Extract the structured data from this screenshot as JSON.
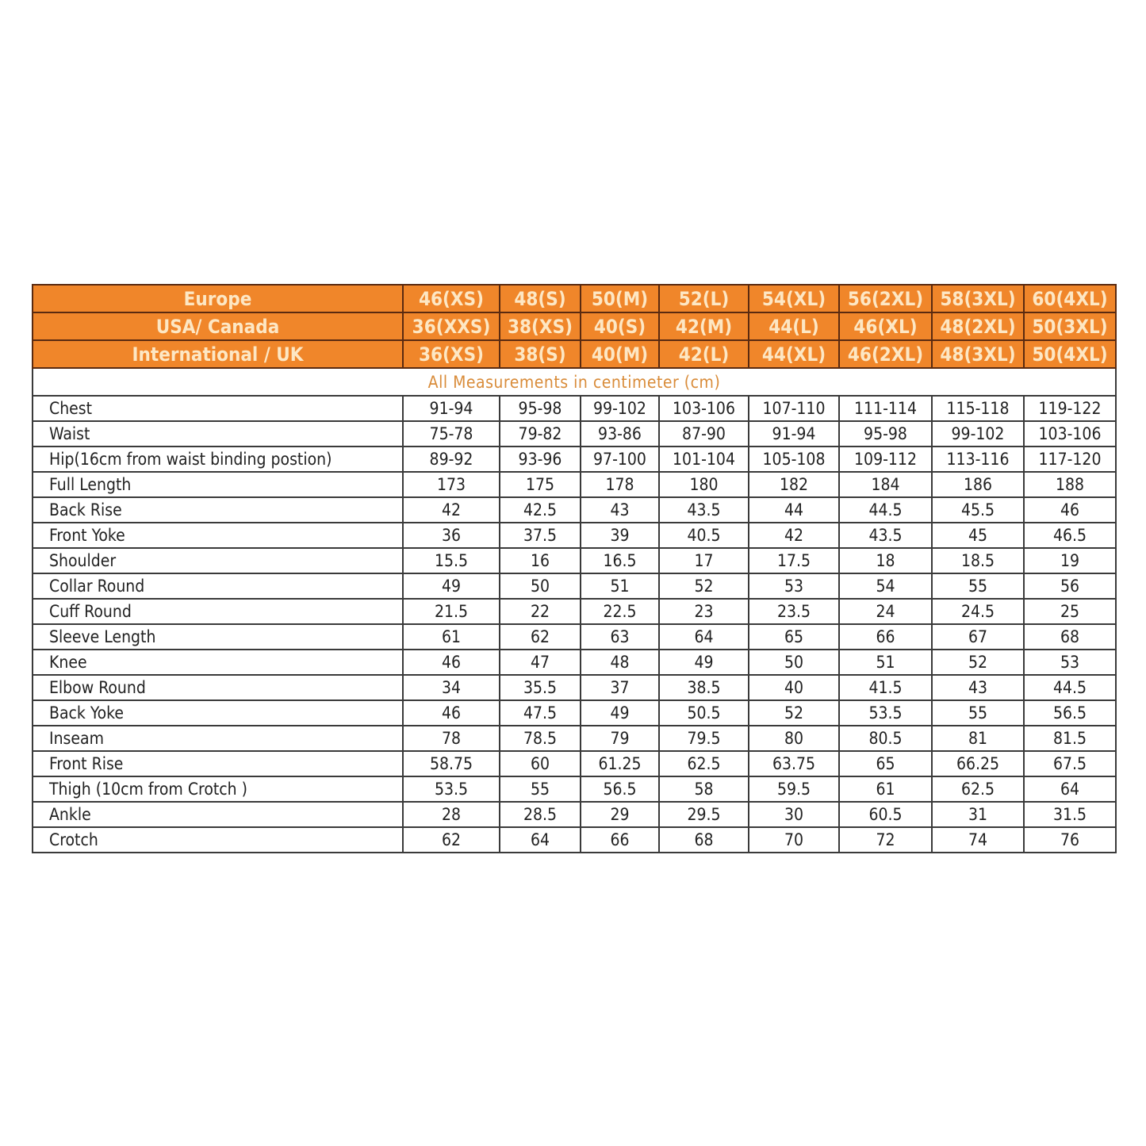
{
  "size_chart": {
    "header_rows": [
      {
        "label": "Europe",
        "sizes": [
          "46(XS)",
          "48(S)",
          "50(M)",
          "52(L)",
          "54(XL)",
          "56(2XL)",
          "58(3XL)",
          "60(4XL)"
        ]
      },
      {
        "label": "USA/ Canada",
        "sizes": [
          "36(XXS)",
          "38(XS)",
          "40(S)",
          "42(M)",
          "44(L)",
          "46(XL)",
          "48(2XL)",
          "50(3XL)"
        ]
      },
      {
        "label": "International / UK",
        "sizes": [
          "36(XS)",
          "38(S)",
          "40(M)",
          "42(L)",
          "44(XL)",
          "46(2XL)",
          "48(3XL)",
          "50(4XL)"
        ]
      }
    ],
    "note": "All Measurements in centimeter (cm)",
    "rows": [
      {
        "label": "Chest",
        "values": [
          "91-94",
          "95-98",
          "99-102",
          "103-106",
          "107-110",
          "111-114",
          "115-118",
          "119-122"
        ]
      },
      {
        "label": "Waist",
        "values": [
          "75-78",
          "79-82",
          "93-86",
          "87-90",
          "91-94",
          "95-98",
          "99-102",
          "103-106"
        ]
      },
      {
        "label": "Hip(16cm from waist binding postion)",
        "values": [
          "89-92",
          "93-96",
          "97-100",
          "101-104",
          "105-108",
          "109-112",
          "113-116",
          "117-120"
        ]
      },
      {
        "label": "Full Length",
        "values": [
          "173",
          "175",
          "178",
          "180",
          "182",
          "184",
          "186",
          "188"
        ]
      },
      {
        "label": "Back Rise",
        "values": [
          "42",
          "42.5",
          "43",
          "43.5",
          "44",
          "44.5",
          "45.5",
          "46"
        ]
      },
      {
        "label": "Front Yoke",
        "values": [
          "36",
          "37.5",
          "39",
          "40.5",
          "42",
          "43.5",
          "45",
          "46.5"
        ]
      },
      {
        "label": "Shoulder",
        "values": [
          "15.5",
          "16",
          "16.5",
          "17",
          "17.5",
          "18",
          "18.5",
          "19"
        ]
      },
      {
        "label": "Collar Round",
        "values": [
          "49",
          "50",
          "51",
          "52",
          "53",
          "54",
          "55",
          "56"
        ]
      },
      {
        "label": "Cuff Round",
        "values": [
          "21.5",
          "22",
          "22.5",
          "23",
          "23.5",
          "24",
          "24.5",
          "25"
        ]
      },
      {
        "label": "Sleeve Length",
        "values": [
          "61",
          "62",
          "63",
          "64",
          "65",
          "66",
          "67",
          "68"
        ]
      },
      {
        "label": "Knee",
        "values": [
          "46",
          "47",
          "48",
          "49",
          "50",
          "51",
          "52",
          "53"
        ]
      },
      {
        "label": "Elbow Round",
        "values": [
          "34",
          "35.5",
          "37",
          "38.5",
          "40",
          "41.5",
          "43",
          "44.5"
        ]
      },
      {
        "label": "Back Yoke",
        "values": [
          "46",
          "47.5",
          "49",
          "50.5",
          "52",
          "53.5",
          "55",
          "56.5"
        ]
      },
      {
        "label": "Inseam",
        "values": [
          "78",
          "78.5",
          "79",
          "79.5",
          "80",
          "80.5",
          "81",
          "81.5"
        ]
      },
      {
        "label": "Front Rise",
        "values": [
          "58.75",
          "60",
          "61.25",
          "62.5",
          "63.75",
          "65",
          "66.25",
          "67.5"
        ]
      },
      {
        "label": "Thigh (10cm from Crotch )",
        "values": [
          "53.5",
          "55",
          "56.5",
          "58",
          "59.5",
          "61",
          "62.5",
          "64"
        ]
      },
      {
        "label": "Ankle",
        "values": [
          "28",
          "28.5",
          "29",
          "29.5",
          "30",
          "60.5",
          "31",
          "31.5"
        ]
      },
      {
        "label": "Crotch",
        "values": [
          "62",
          "64",
          "66",
          "68",
          "70",
          "72",
          "74",
          "76"
        ]
      }
    ],
    "colors": {
      "header_bg": "#f0862a",
      "header_text": "#fde7c4",
      "note_text": "#d98c3a"
    }
  }
}
